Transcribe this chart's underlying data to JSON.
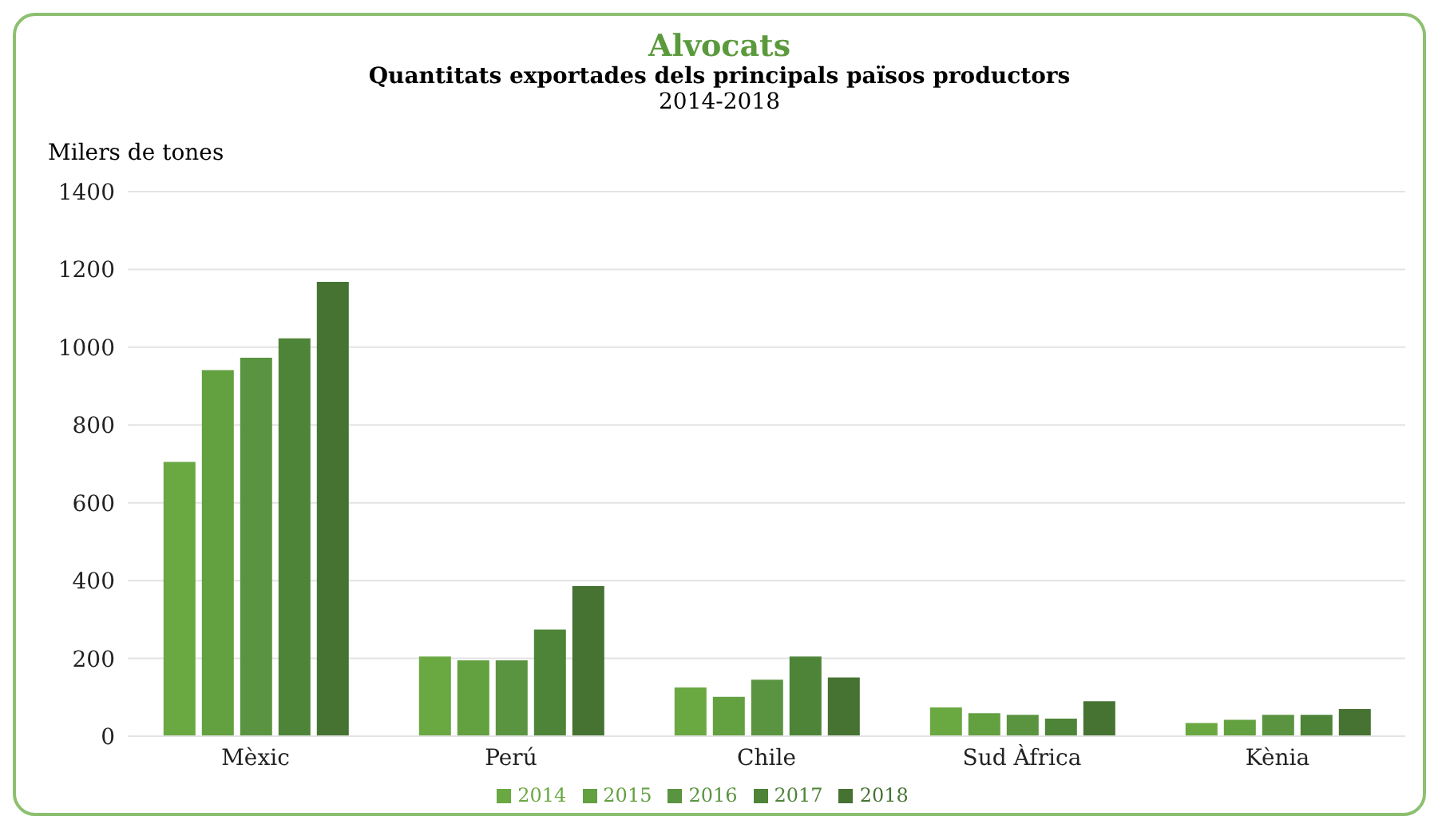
{
  "chart_data": {
    "type": "bar",
    "title": "Alvocats",
    "subtitle": "Quantitats exportades dels principals països productors",
    "annotations": [
      "2014-2018"
    ],
    "ylabel": "Milers de tones",
    "categories": [
      "Mèxic",
      "Perú",
      "Chile",
      "Sud Àfrica",
      "Kènia"
    ],
    "series": [
      {
        "name": "2014",
        "color": "#6aa842",
        "values": [
          705,
          205,
          125,
          74,
          34
        ]
      },
      {
        "name": "2015",
        "color": "#62a040",
        "values": [
          941,
          195,
          101,
          59,
          42
        ]
      },
      {
        "name": "2016",
        "color": "#5a9440",
        "values": [
          973,
          195,
          145,
          55,
          55
        ]
      },
      {
        "name": "2017",
        "color": "#4e8438",
        "values": [
          1023,
          274,
          205,
          45,
          55
        ]
      },
      {
        "name": "2018",
        "color": "#467232",
        "values": [
          1168,
          386,
          151,
          90,
          70
        ]
      }
    ],
    "ylim": [
      0,
      1400
    ],
    "yticks": [
      0,
      200,
      400,
      600,
      800,
      1000,
      1200,
      1400
    ],
    "grid": "y",
    "legend": "bottom"
  }
}
